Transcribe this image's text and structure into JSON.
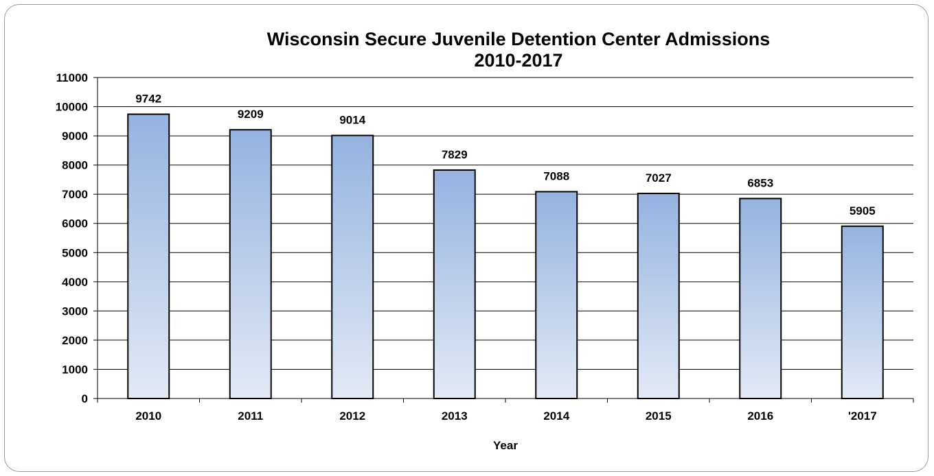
{
  "chart_data": {
    "type": "bar",
    "title": "Wisconsin Secure Juvenile Detention Center Admissions",
    "subtitle": "2010-2017",
    "xlabel": "Year",
    "ylabel": "",
    "categories": [
      "2010",
      "2011",
      "2012",
      "2013",
      "2014",
      "2015",
      "2016",
      "'2017"
    ],
    "values": [
      9742,
      9209,
      9014,
      7829,
      7088,
      7027,
      6853,
      5905
    ],
    "data_labels": [
      "9742",
      "9209",
      "9014",
      "7829",
      "7088",
      "7027",
      "6853",
      "5905"
    ],
    "ylim": [
      0,
      11000
    ],
    "yticks": [
      0,
      1000,
      2000,
      3000,
      4000,
      5000,
      6000,
      7000,
      8000,
      9000,
      10000,
      11000
    ],
    "ytick_labels": [
      "0",
      "1000",
      "2000",
      "3000",
      "4000",
      "5000",
      "6000",
      "7000",
      "8000",
      "9000",
      "10000",
      "11000"
    ],
    "grid": true,
    "legend": "none",
    "colors": {
      "bar_top": "#95b3e0",
      "bar_bottom": "#e3eaf6",
      "bar_stroke": "#000000",
      "gridline": "#000000"
    }
  }
}
